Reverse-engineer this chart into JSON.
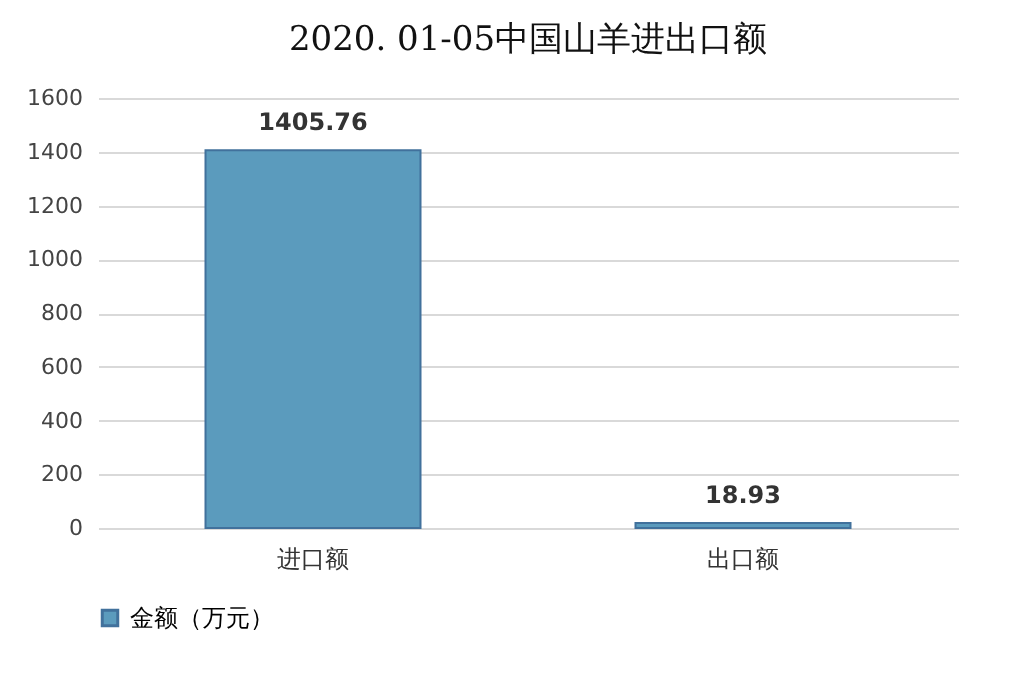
{
  "chart_data": {
    "type": "bar",
    "title": "2020. 01-05中国山羊进出口额",
    "categories": [
      "进口额",
      "出口额"
    ],
    "series": [
      {
        "name": "金额（万元）",
        "color": "#5b9bbd",
        "values": [
          1405.76,
          18.93
        ]
      }
    ],
    "ylim": [
      0,
      1600
    ],
    "yticks": [
      0,
      200,
      400,
      600,
      800,
      1000,
      1200,
      1400,
      1600
    ],
    "grid": "y",
    "legend": "bottom",
    "data_labels": true
  }
}
